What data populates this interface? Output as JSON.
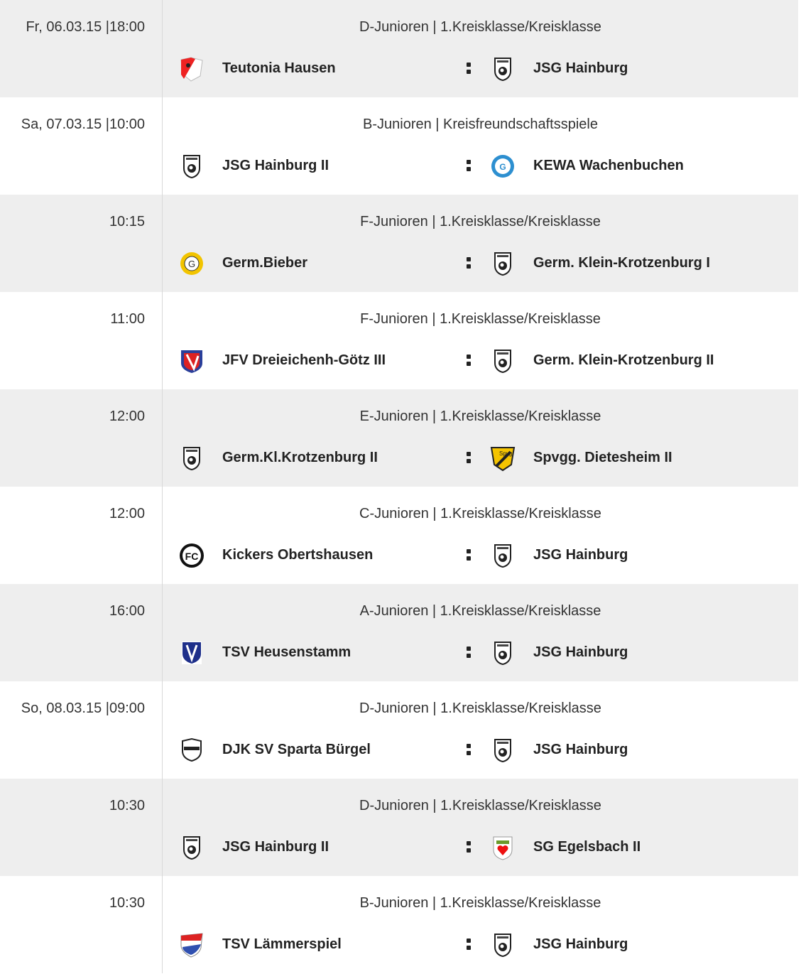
{
  "matches": [
    {
      "date": "Fr, 06.03.15 |18:00",
      "league": "D-Junioren | 1.Kreisklasse/Kreisklasse",
      "home": "Teutonia Hausen",
      "home_logo": "teutonia",
      "away": "JSG Hainburg",
      "away_logo": "hainburg"
    },
    {
      "date": "Sa, 07.03.15 |10:00",
      "league": "B-Junioren | Kreisfreundschaftsspiele",
      "home": "JSG Hainburg II",
      "home_logo": "hainburg",
      "away": "KEWA Wachenbuchen",
      "away_logo": "kewa"
    },
    {
      "date": "10:15",
      "league": "F-Junioren | 1.Kreisklasse/Kreisklasse",
      "home": "Germ.Bieber",
      "home_logo": "bieber",
      "away": "Germ. Klein-Krotzenburg I",
      "away_logo": "hainburg"
    },
    {
      "date": "11:00",
      "league": "F-Junioren | 1.Kreisklasse/Kreisklasse",
      "home": "JFV Dreieichenh-Götz III",
      "home_logo": "jfv",
      "away": "Germ. Klein-Krotzenburg II",
      "away_logo": "hainburg"
    },
    {
      "date": "12:00",
      "league": "E-Junioren | 1.Kreisklasse/Kreisklasse",
      "home": "Germ.Kl.Krotzenburg II",
      "home_logo": "hainburg",
      "away": "Spvgg. Dietesheim II",
      "away_logo": "dietesheim"
    },
    {
      "date": "12:00",
      "league": "C-Junioren | 1.Kreisklasse/Kreisklasse",
      "home": "Kickers Obertshausen",
      "home_logo": "kickers",
      "away": "JSG Hainburg",
      "away_logo": "hainburg"
    },
    {
      "date": "16:00",
      "league": "A-Junioren | 1.Kreisklasse/Kreisklasse",
      "home": "TSV Heusenstamm",
      "home_logo": "heusenstamm",
      "away": "JSG Hainburg",
      "away_logo": "hainburg"
    },
    {
      "date": "So, 08.03.15 |09:00",
      "league": "D-Junioren | 1.Kreisklasse/Kreisklasse",
      "home": "DJK SV Sparta Bürgel",
      "home_logo": "sparta",
      "away": "JSG Hainburg",
      "away_logo": "hainburg"
    },
    {
      "date": "10:30",
      "league": "D-Junioren | 1.Kreisklasse/Kreisklasse",
      "home": "JSG Hainburg II",
      "home_logo": "hainburg",
      "away": "SG Egelsbach II",
      "away_logo": "egelsbach"
    },
    {
      "date": "10:30",
      "league": "B-Junioren | 1.Kreisklasse/Kreisklasse",
      "home": "TSV Lämmerspiel",
      "home_logo": "laemmerspiel",
      "away": "JSG Hainburg",
      "away_logo": "hainburg"
    }
  ],
  "colors": {
    "row_alt": "#eeeeee",
    "text": "#333333",
    "team_text": "#222222"
  }
}
